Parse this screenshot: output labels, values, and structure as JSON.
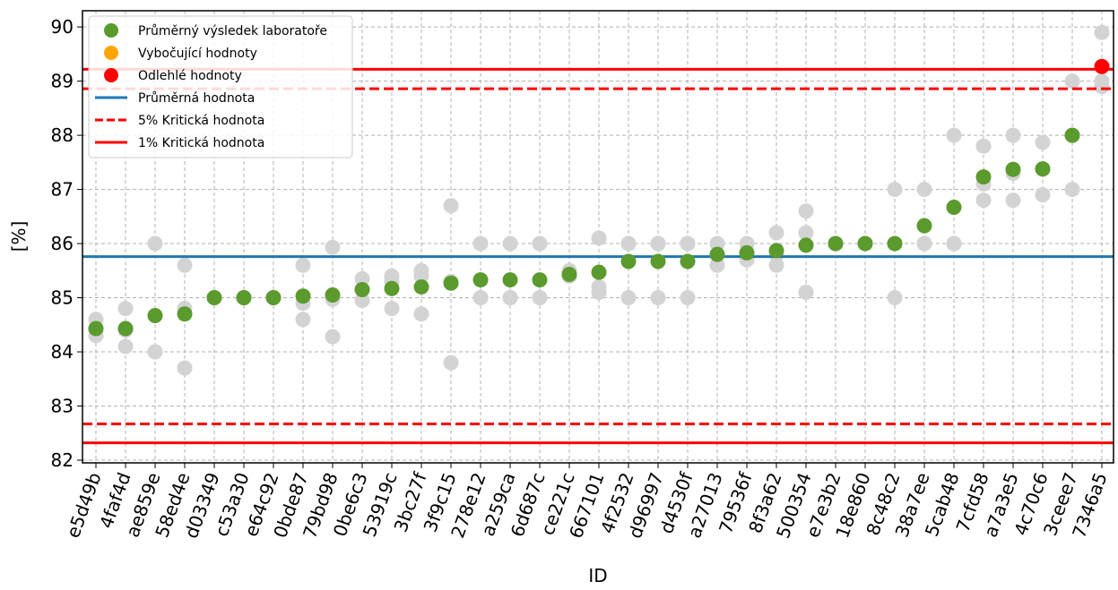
{
  "chart_data": {
    "type": "scatter",
    "xlabel": "ID",
    "ylabel": "[%]",
    "ylim": [
      81.95,
      90.3
    ],
    "yticks": [
      82,
      83,
      84,
      85,
      86,
      87,
      88,
      89,
      90
    ],
    "grid": true,
    "legend_position": "top-left",
    "categories": [
      "e5d49b",
      "4faf4d",
      "ae859e",
      "58ed4e",
      "d03349",
      "c53a30",
      "e64c92",
      "0bde87",
      "79bd98",
      "0be6c3",
      "53919c",
      "3bc27f",
      "3f9c15",
      "278e12",
      "a259ca",
      "6d687c",
      "ce221c",
      "667101",
      "4f2532",
      "d96997",
      "d4530f",
      "a27013",
      "79536f",
      "8f3a62",
      "500354",
      "e7e3b2",
      "18e860",
      "8c48c2",
      "38a7ee",
      "5cab48",
      "7cfd58",
      "a7a3e5",
      "4c70c6",
      "3ceee7",
      "7346a5"
    ],
    "means": [
      84.43,
      84.43,
      84.67,
      84.7,
      85.0,
      85.0,
      85.0,
      85.03,
      85.05,
      85.15,
      85.17,
      85.2,
      85.27,
      85.33,
      85.33,
      85.33,
      85.43,
      85.47,
      85.67,
      85.67,
      85.67,
      85.8,
      85.83,
      85.87,
      85.97,
      86.0,
      86.0,
      86.0,
      86.33,
      86.67,
      87.23,
      87.37,
      87.38,
      88.0,
      89.27
    ],
    "replicates": [
      [
        84.6,
        84.3,
        84.4
      ],
      [
        84.8,
        84.4,
        84.1
      ],
      [
        86.0,
        84.0,
        84.0
      ],
      [
        85.6,
        84.8,
        83.7
      ],
      [
        85.0,
        85.0,
        85.0
      ],
      [
        85.0,
        85.0,
        85.0
      ],
      [
        85.0,
        85.0,
        85.0
      ],
      [
        85.6,
        84.9,
        84.6
      ],
      [
        85.93,
        84.97,
        84.28
      ],
      [
        85.35,
        85.15,
        84.95
      ],
      [
        85.4,
        85.3,
        84.8
      ],
      [
        85.5,
        85.4,
        84.7
      ],
      [
        86.7,
        85.3,
        83.8
      ],
      [
        86.0,
        85.0,
        85.0
      ],
      [
        86.0,
        85.0,
        85.0
      ],
      [
        86.0,
        85.0,
        85.0
      ],
      [
        85.5,
        85.4,
        85.4
      ],
      [
        86.1,
        85.2,
        85.1
      ],
      [
        86.0,
        86.0,
        85.0
      ],
      [
        86.0,
        86.0,
        85.0
      ],
      [
        86.0,
        86.0,
        85.0
      ],
      [
        86.0,
        85.8,
        85.6
      ],
      [
        86.0,
        85.8,
        85.7
      ],
      [
        86.2,
        85.8,
        85.6
      ],
      [
        86.6,
        86.2,
        85.1
      ],
      [
        86.0,
        86.0,
        86.0
      ],
      [
        86.0,
        86.0,
        86.0
      ],
      [
        87.0,
        86.0,
        85.0
      ],
      [
        87.0,
        86.0,
        86.0
      ],
      [
        88.0,
        86.0,
        86.0
      ],
      [
        87.8,
        87.1,
        86.8
      ],
      [
        88.0,
        87.3,
        86.8
      ],
      [
        87.87,
        87.37,
        86.9
      ],
      [
        88.0,
        89.0,
        87.0
      ],
      [
        89.9,
        89.0,
        88.9
      ]
    ],
    "outlier_flags": [
      "normal",
      "normal",
      "normal",
      "normal",
      "normal",
      "normal",
      "normal",
      "normal",
      "normal",
      "normal",
      "normal",
      "normal",
      "normal",
      "normal",
      "normal",
      "normal",
      "normal",
      "normal",
      "normal",
      "normal",
      "normal",
      "normal",
      "normal",
      "normal",
      "normal",
      "normal",
      "normal",
      "normal",
      "normal",
      "normal",
      "normal",
      "normal",
      "normal",
      "normal",
      "outlier"
    ],
    "mean_value": 85.76,
    "crit_5_upper": 88.86,
    "crit_5_lower": 82.67,
    "crit_1_upper": 89.22,
    "crit_1_lower": 82.32,
    "colors": {
      "lab_mean": "#5b9a2d",
      "straggler": "#ffa500",
      "outlier": "#ff0000",
      "mean_line": "#1f77b4",
      "crit_line": "#ff0000",
      "replicate": "#d3d3d3"
    },
    "legend": [
      {
        "key": "lab_mean",
        "marker": "dot",
        "label": "Průměrný výsledek laboratoře"
      },
      {
        "key": "straggler",
        "marker": "dot",
        "label": "Vybočující hodnoty"
      },
      {
        "key": "outlier",
        "marker": "dot",
        "label": "Odlehlé hodnoty"
      },
      {
        "key": "mean_line",
        "marker": "line",
        "label": "Průměrná hodnota"
      },
      {
        "key": "crit_line",
        "marker": "dashed",
        "label": "5% Kritická hodnota"
      },
      {
        "key": "crit_line",
        "marker": "line",
        "label": "1% Kritická hodnota"
      }
    ]
  }
}
